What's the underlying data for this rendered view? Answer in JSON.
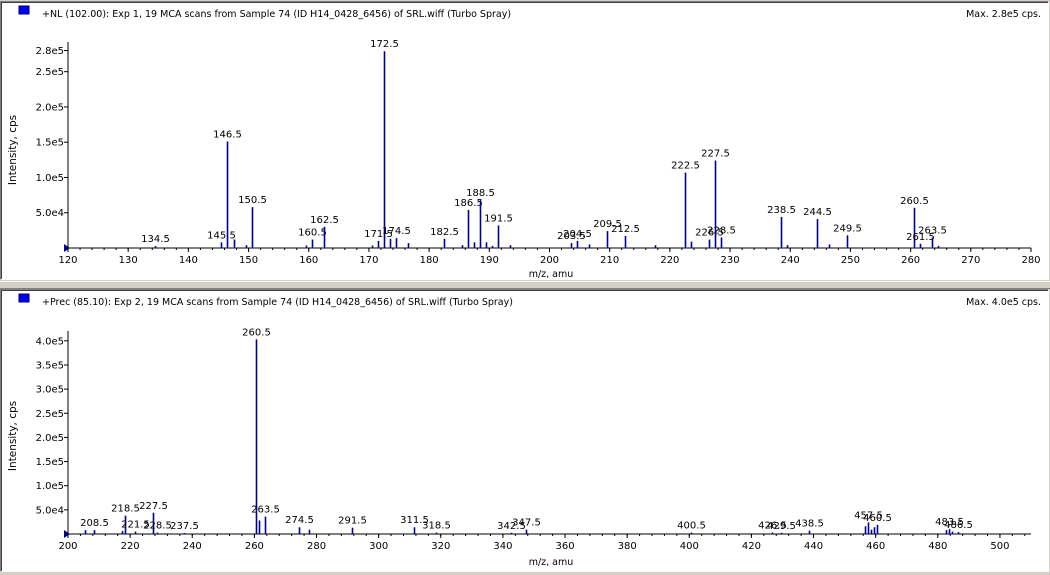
{
  "accent_color": "#0000ff",
  "series_color": "#000099",
  "chart_data": [
    {
      "type": "bar",
      "title": "+NL (102.00): Exp 1, 19 MCA scans from Sample 74 (ID H14_0428_6456) of SRL.wiff (Turbo Spray)",
      "max_label": "Max. 2.8e5 cps.",
      "xlabel": "m/z, amu",
      "ylabel": "Intensity, cps",
      "xlim": [
        120,
        280
      ],
      "ylim": [
        0,
        285000
      ],
      "x_ticks": [
        "120",
        "130",
        "140",
        "150",
        "160",
        "170",
        "180",
        "190",
        "200",
        "210",
        "220",
        "230",
        "240",
        "250",
        "260",
        "270",
        "280"
      ],
      "y_ticks": [
        {
          "value": 50000,
          "label": "5.0e4"
        },
        {
          "value": 100000,
          "label": "1.0e5"
        },
        {
          "value": 150000,
          "label": "1.5e5"
        },
        {
          "value": 200000,
          "label": "2.0e5"
        },
        {
          "value": 250000,
          "label": "2.5e5"
        },
        {
          "value": 280000,
          "label": "2.8e5"
        }
      ],
      "peaks": [
        {
          "x": 134.5,
          "y": 2700,
          "label": "134.5"
        },
        {
          "x": 145.5,
          "y": 8000,
          "label": "145.5"
        },
        {
          "x": 146.5,
          "y": 151000,
          "label": "146.5"
        },
        {
          "x": 147.5,
          "y": 12000
        },
        {
          "x": 149.5,
          "y": 4000
        },
        {
          "x": 150.5,
          "y": 58000,
          "label": "150.5"
        },
        {
          "x": 159.5,
          "y": 3500
        },
        {
          "x": 160.5,
          "y": 12000,
          "label": "160.5"
        },
        {
          "x": 162.5,
          "y": 30000,
          "label": "162.5"
        },
        {
          "x": 170.5,
          "y": 3500
        },
        {
          "x": 171.5,
          "y": 10000,
          "label": "171.5"
        },
        {
          "x": 172.5,
          "y": 279000,
          "label": "172.5"
        },
        {
          "x": 173.5,
          "y": 13000
        },
        {
          "x": 174.5,
          "y": 14000,
          "label": "174.5"
        },
        {
          "x": 176.5,
          "y": 7000
        },
        {
          "x": 182.5,
          "y": 13000,
          "label": "182.5"
        },
        {
          "x": 185.5,
          "y": 4000
        },
        {
          "x": 186.5,
          "y": 54000,
          "label": "186.5"
        },
        {
          "x": 187.5,
          "y": 8000
        },
        {
          "x": 188.5,
          "y": 68000,
          "label": "188.5"
        },
        {
          "x": 189.5,
          "y": 8000
        },
        {
          "x": 190.5,
          "y": 3000
        },
        {
          "x": 191.5,
          "y": 32000,
          "label": "191.5"
        },
        {
          "x": 193.5,
          "y": 4000
        },
        {
          "x": 203.5,
          "y": 7000,
          "label": "203.5"
        },
        {
          "x": 204.5,
          "y": 10000,
          "label": "204.5"
        },
        {
          "x": 206.5,
          "y": 5000
        },
        {
          "x": 209.5,
          "y": 24000,
          "label": "209.5"
        },
        {
          "x": 212.5,
          "y": 17000,
          "label": "212.5"
        },
        {
          "x": 217.5,
          "y": 4000
        },
        {
          "x": 222.5,
          "y": 107000,
          "label": "222.5"
        },
        {
          "x": 223.5,
          "y": 9000
        },
        {
          "x": 226.5,
          "y": 12000,
          "label": "226.5"
        },
        {
          "x": 227.5,
          "y": 124000,
          "label": "227.5"
        },
        {
          "x": 228.5,
          "y": 15000,
          "label": "228.5"
        },
        {
          "x": 238.5,
          "y": 44000,
          "label": "238.5"
        },
        {
          "x": 239.5,
          "y": 4000
        },
        {
          "x": 244.5,
          "y": 41000,
          "label": "244.5"
        },
        {
          "x": 246.5,
          "y": 5000
        },
        {
          "x": 249.5,
          "y": 18000,
          "label": "249.5"
        },
        {
          "x": 260.5,
          "y": 57000,
          "label": "260.5"
        },
        {
          "x": 261.5,
          "y": 6000,
          "label": "261.5"
        },
        {
          "x": 263.5,
          "y": 15000,
          "label": "263.5"
        },
        {
          "x": 264.5,
          "y": 3000
        }
      ]
    },
    {
      "type": "bar",
      "title": "+Prec (85.10): Exp 2, 19 MCA scans from Sample 74 (ID H14_0428_6456) of SRL.wiff (Turbo Spray)",
      "max_label": "Max. 4.0e5 cps.",
      "xlabel": "m/z, amu",
      "ylabel": "Intensity, cps",
      "xlim": [
        200,
        510
      ],
      "ylim": [
        0,
        410000
      ],
      "x_ticks": [
        "200",
        "220",
        "240",
        "260",
        "280",
        "300",
        "320",
        "340",
        "360",
        "380",
        "400",
        "420",
        "440",
        "460",
        "480",
        "500"
      ],
      "y_ticks": [
        {
          "value": 50000,
          "label": "5.0e4"
        },
        {
          "value": 100000,
          "label": "1.0e5"
        },
        {
          "value": 150000,
          "label": "1.5e5"
        },
        {
          "value": 200000,
          "label": "2.0e5"
        },
        {
          "value": 250000,
          "label": "2.5e5"
        },
        {
          "value": 300000,
          "label": "3.0e5"
        },
        {
          "value": 350000,
          "label": "3.5e5"
        },
        {
          "value": 400000,
          "label": "4.0e5"
        }
      ],
      "peaks": [
        {
          "x": 205.5,
          "y": 8000
        },
        {
          "x": 208.5,
          "y": 8000,
          "label": "208.5"
        },
        {
          "x": 217.5,
          "y": 6000
        },
        {
          "x": 218.5,
          "y": 38000,
          "label": "218.5"
        },
        {
          "x": 221.5,
          "y": 5000,
          "label": "221.5"
        },
        {
          "x": 227.5,
          "y": 44000,
          "label": "227.5"
        },
        {
          "x": 228.5,
          "y": 3000,
          "label": "228.5"
        },
        {
          "x": 237.5,
          "y": 2000,
          "label": "237.5"
        },
        {
          "x": 260.5,
          "y": 403000,
          "label": "260.5"
        },
        {
          "x": 261.5,
          "y": 28000
        },
        {
          "x": 263.5,
          "y": 36000,
          "label": "263.5"
        },
        {
          "x": 274.5,
          "y": 14000,
          "label": "274.5"
        },
        {
          "x": 277.5,
          "y": 9000
        },
        {
          "x": 291.5,
          "y": 13000,
          "label": "291.5"
        },
        {
          "x": 311.5,
          "y": 14000,
          "label": "311.5"
        },
        {
          "x": 318.5,
          "y": 3000,
          "label": "318.5"
        },
        {
          "x": 342.5,
          "y": 2500,
          "label": "342.5"
        },
        {
          "x": 347.5,
          "y": 9000,
          "label": "347.5"
        },
        {
          "x": 400.5,
          "y": 3000,
          "label": "400.5"
        },
        {
          "x": 426.5,
          "y": 3000,
          "label": "426.5"
        },
        {
          "x": 429.5,
          "y": 2500,
          "label": "429.5"
        },
        {
          "x": 438.5,
          "y": 7000,
          "label": "438.5"
        },
        {
          "x": 456.5,
          "y": 16000
        },
        {
          "x": 457.5,
          "y": 24000,
          "label": "457.5"
        },
        {
          "x": 458.5,
          "y": 9000
        },
        {
          "x": 459.5,
          "y": 14000
        },
        {
          "x": 460.5,
          "y": 19000,
          "label": "460.5"
        },
        {
          "x": 482.5,
          "y": 8000
        },
        {
          "x": 483.5,
          "y": 10000,
          "label": "483.5"
        },
        {
          "x": 484.5,
          "y": 5000
        },
        {
          "x": 486.5,
          "y": 4000,
          "label": "486.5"
        }
      ]
    }
  ]
}
